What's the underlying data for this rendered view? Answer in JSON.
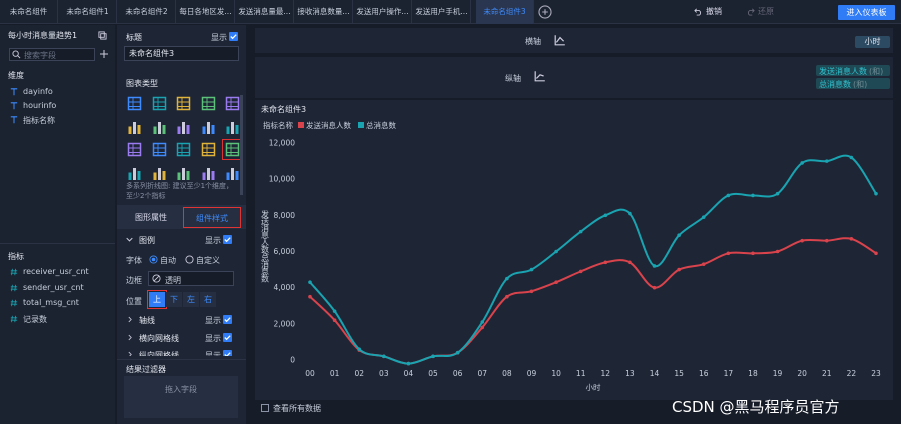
{
  "tabs": [
    "未命名组件",
    "未命名组件1",
    "未命名组件2",
    "每日各地区发...",
    "发送消息量最...",
    "接收消息数量...",
    "发送用户操作...",
    "发送用户手机...",
    "未命名组件3"
  ],
  "toolbar": {
    "undo": "撤销",
    "redo": "还原",
    "enter": "进入仪表板"
  },
  "dataset": {
    "title": "每小时消息量趋势1",
    "search": "搜索字段",
    "dimension_heading": "维度",
    "dimensions": [
      "dayinfo",
      "hourinfo",
      "指标名称"
    ],
    "measure_heading": "指标",
    "measures": [
      "receiver_usr_cnt",
      "sender_usr_cnt",
      "total_msg_cnt",
      "记录数"
    ]
  },
  "config": {
    "title_label": "标题",
    "show": "显示",
    "title_value": "未命名组件3",
    "chart_type_label": "图表类型",
    "chart_type_hint": "多系列折线图: 建议至少1个维度，至少2个指标",
    "tabs": [
      "图形属性",
      "组件样式"
    ],
    "legend": "图例",
    "font_label": "字体",
    "font_options": [
      "自动",
      "自定义"
    ],
    "border_label": "边框",
    "border_value": "透明",
    "position_label": "位置",
    "positions": [
      "上",
      "下",
      "左",
      "右"
    ],
    "sections": [
      "轴线",
      "横向网格线",
      "纵向网格线"
    ],
    "filter_label": "结果过滤器",
    "filter_drop": "拖入字段"
  },
  "shelves": {
    "x_label": "横轴",
    "x_field": "小时",
    "y_label": "纵轴",
    "y_fields": [
      {
        "name": "发送消息人数",
        "agg": "(和)"
      },
      {
        "name": "总消息数",
        "agg": "(和)"
      }
    ]
  },
  "chart_data": {
    "type": "line",
    "title": "未命名组件3",
    "legend_title": "指标名称",
    "legend_position": "top",
    "x_label": "小时",
    "y_label": "发送消息人数/总消息数",
    "categories": [
      "00",
      "01",
      "02",
      "03",
      "04",
      "05",
      "06",
      "07",
      "08",
      "09",
      "10",
      "11",
      "12",
      "13",
      "14",
      "15",
      "16",
      "17",
      "18",
      "19",
      "20",
      "21",
      "22",
      "23"
    ],
    "series": [
      {
        "name": "发送消息人数",
        "color": "#d9434c",
        "values": [
          3500,
          2200,
          550,
          200,
          -200,
          200,
          400,
          1800,
          3500,
          3800,
          4300,
          4900,
          5400,
          5400,
          4000,
          5000,
          5300,
          5900,
          5900,
          6000,
          6600,
          6600,
          6700,
          5900
        ]
      },
      {
        "name": "总消息数",
        "color": "#1aa3b0",
        "values": [
          4300,
          2700,
          600,
          200,
          -200,
          200,
          400,
          2100,
          4500,
          5000,
          6000,
          7100,
          8000,
          8100,
          5200,
          6900,
          7900,
          9100,
          9100,
          9200,
          10900,
          11000,
          11200,
          9200
        ]
      }
    ],
    "ylim": [
      -500,
      12500
    ],
    "yticks": [
      0,
      {
        "value": 2000,
        "label": "2,000"
      },
      {
        "value": 4000,
        "label": "4,000"
      },
      {
        "value": 6000,
        "label": "6,000"
      },
      {
        "value": 8000,
        "label": "8,000"
      },
      {
        "value": 10000,
        "label": "10,000"
      },
      {
        "value": 12000,
        "label": "12,000"
      }
    ],
    "grid": false,
    "smooth": true
  },
  "footer": {
    "show_all": "查看所有数据"
  },
  "watermark": "CSDN @黑马程序员官方"
}
